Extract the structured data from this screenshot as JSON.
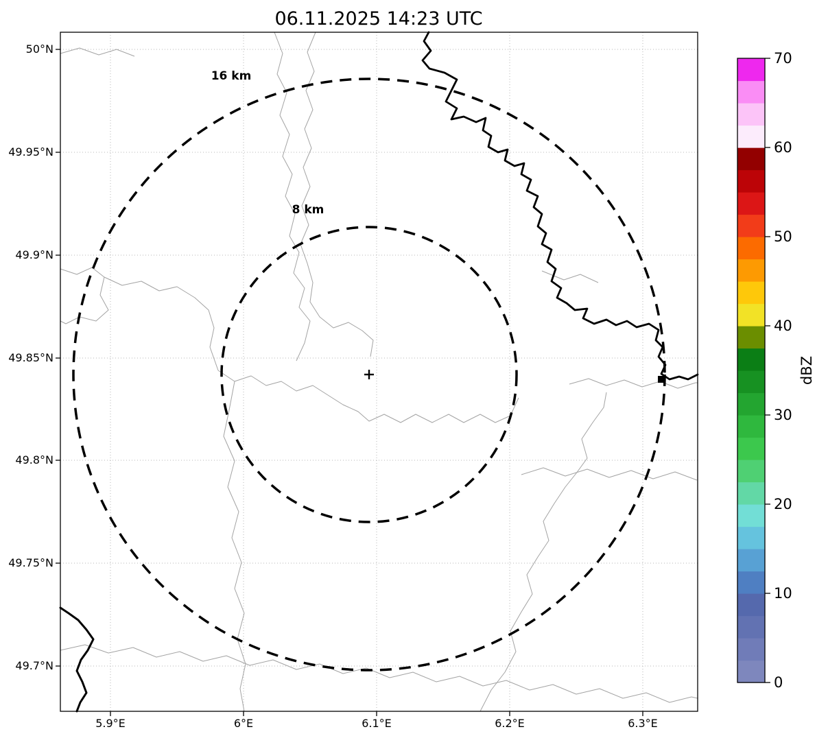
{
  "title": "06.11.2025 14:23 UTC",
  "chart_data": {
    "type": "radar_reflectivity_map",
    "title": "06.11.2025 14:23 UTC",
    "x_axis": {
      "ticks": [
        {
          "value": 5.9,
          "label": "5.9°E"
        },
        {
          "value": 6.0,
          "label": "6°E"
        },
        {
          "value": 6.1,
          "label": "6.1°E"
        },
        {
          "value": 6.2,
          "label": "6.2°E"
        },
        {
          "value": 6.3,
          "label": "6.3°E"
        }
      ],
      "range_deg_e": [
        5.862,
        6.341
      ]
    },
    "y_axis": {
      "ticks": [
        {
          "value": 50.0,
          "label": "50°N"
        },
        {
          "value": 49.95,
          "label": "49.95°N"
        },
        {
          "value": 49.9,
          "label": "49.9°N"
        },
        {
          "value": 49.85,
          "label": "49.85°N"
        },
        {
          "value": 49.8,
          "label": "49.8°N"
        },
        {
          "value": 49.75,
          "label": "49.75°N"
        },
        {
          "value": 49.7,
          "label": "49.7°N"
        }
      ],
      "range_deg_n": [
        49.678,
        50.008
      ]
    },
    "range_rings": [
      {
        "label": "8 km",
        "radius_km": 8
      },
      {
        "label": "16 km",
        "radius_km": 16
      }
    ],
    "radar_center": {
      "lon_deg_e": 6.094,
      "lat_deg_n": 49.842,
      "marker": "+"
    },
    "reflectivity_echoes": [],
    "note": "No precipitation echoes visible in displayed domain",
    "grid": "dotted",
    "basemap": {
      "thin_line_color": "#a3a3a3",
      "thick_line_color": "#000000"
    },
    "colorbar": {
      "label": "dBZ",
      "min": 0,
      "max": 70,
      "tick_labels": [
        "0",
        "10",
        "20",
        "30",
        "40",
        "50",
        "60",
        "70"
      ],
      "band_step_dbz": 2.5,
      "band_colors_bottom_to_top": [
        "#7e87bd",
        "#707cb8",
        "#6272b2",
        "#5569ad",
        "#4f7fc2",
        "#58a1d4",
        "#65c3de",
        "#72ded6",
        "#62d8a6",
        "#4fd073",
        "#3cc84d",
        "#2fb83e",
        "#23a530",
        "#179122",
        "#0b7e15",
        "#6b8e00",
        "#f2e226",
        "#fec80a",
        "#fd9a02",
        "#fc6b00",
        "#f23c19",
        "#dc1616",
        "#bc0407",
        "#930000",
        "#fcecfc",
        "#fcc4f8",
        "#fa8df5",
        "#ee28ee"
      ]
    }
  }
}
